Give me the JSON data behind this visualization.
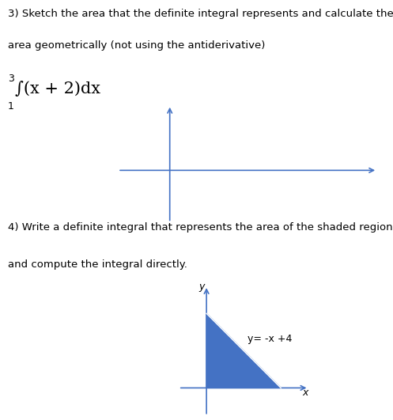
{
  "bg_color": "#ffffff",
  "text_color": "#000000",
  "axis_color": "#4472c4",
  "shade_color": "#4472c4",
  "text_problem3_line1": "3) Sketch the area that the definite integral represents and calculate the",
  "text_problem3_line2": "area geometrically (not using the antiderivative)",
  "text_integral_upper": "3",
  "text_integral_body": "∫(x + 2)dx",
  "text_integral_lower": "1",
  "text_problem4_line1": "4) Write a definite integral that represents the area of the shaded region",
  "text_problem4_line2": "and compute the integral directly.",
  "label_y": "y",
  "label_x": "x",
  "equation_label": "y= -x +4",
  "fig_width": 4.97,
  "fig_height": 5.31,
  "dpi": 100
}
